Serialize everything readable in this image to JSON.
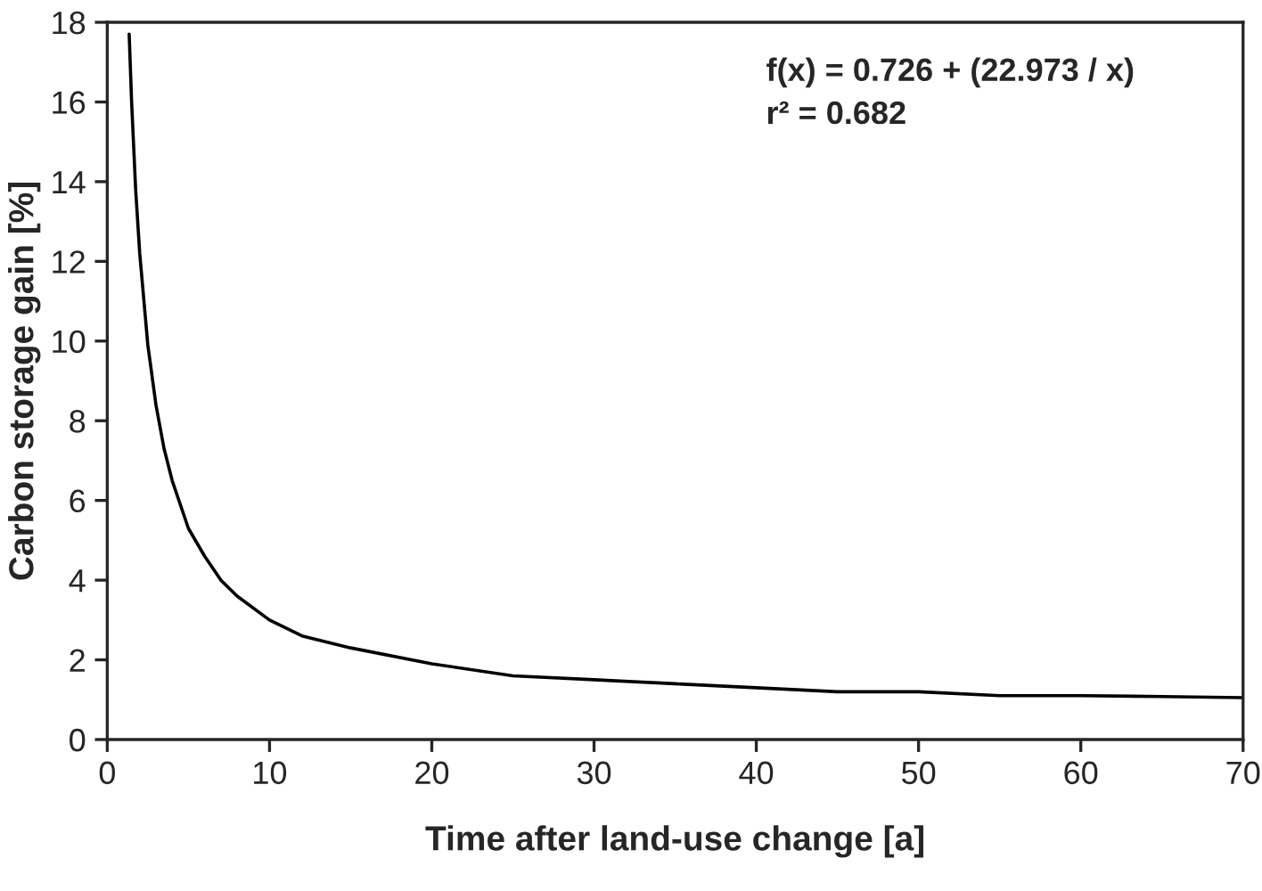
{
  "chart_data": {
    "type": "line",
    "xlabel": "Time after land-use change [a]",
    "ylabel": "Carbon storage gain [%]",
    "annotations": [
      "f(x) = 0.726 + (22.973 / x)",
      "r² = 0.682"
    ],
    "series": [
      {
        "color": "#000000",
        "x": [
          1.35,
          1.5,
          1.75,
          2,
          2.5,
          3,
          3.5,
          4,
          5,
          6,
          7,
          8,
          10,
          12,
          15,
          20,
          25,
          30,
          35,
          40,
          45,
          50,
          55,
          60,
          65,
          70
        ],
        "values": [
          17.7,
          16.0,
          13.8,
          12.2,
          9.9,
          8.4,
          7.3,
          6.5,
          5.3,
          4.6,
          4.0,
          3.6,
          3.0,
          2.6,
          2.3,
          1.9,
          1.6,
          1.5,
          1.4,
          1.3,
          1.2,
          1.2,
          1.1,
          1.1,
          1.08,
          1.05
        ]
      }
    ],
    "xlim": [
      0,
      70
    ],
    "ylim": [
      0,
      18
    ],
    "xticks": [
      0,
      10,
      20,
      30,
      40,
      50,
      60,
      70
    ],
    "yticks": [
      0,
      2,
      4,
      6,
      8,
      10,
      12,
      14,
      16,
      18
    ],
    "grid": false,
    "legend": false,
    "marker": "none",
    "line_style": "solid"
  }
}
